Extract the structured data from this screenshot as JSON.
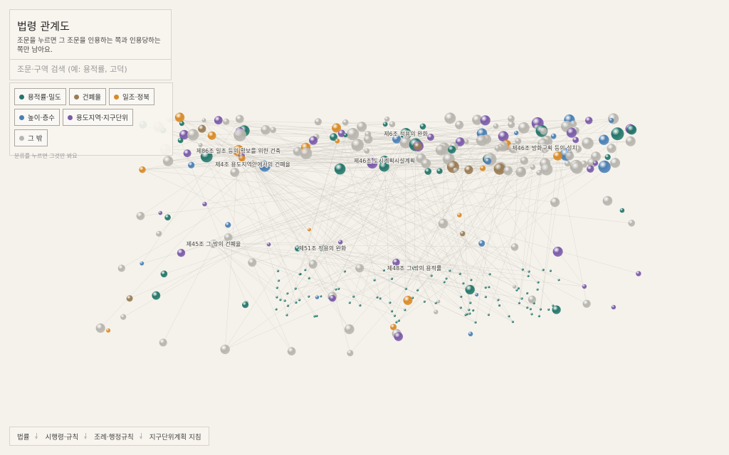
{
  "panel": {
    "title": "법령 관계도",
    "description": "조문을 누르면 그 조문을 인용하는 쪽과 인용당하는 쪽만 남아요.",
    "search_placeholder": "조문·구역 검색 (예: 용적률, 고덕)",
    "filters": [
      {
        "label": "용적률·밀도",
        "color": "#23766a"
      },
      {
        "label": "건폐율",
        "color": "#9a7c55"
      },
      {
        "label": "일조·정북",
        "color": "#d98a26"
      },
      {
        "label": "높이·층수",
        "color": "#4a7fb5"
      },
      {
        "label": "용도지역·지구단위",
        "color": "#7a5aa8"
      },
      {
        "label": "그 밖",
        "color": "#b8b5ae"
      }
    ],
    "filter_hint": "분류를 누르면 그것만 봐요"
  },
  "graph": {
    "nodes": [
      {
        "label": "제6조 적용의 완화"
      },
      {
        "label": "제86조 일조 등의 확보를 위한 건축"
      },
      {
        "label": "제46조 방화구획 등의 설치"
      },
      {
        "label": "제4조 용도지역안에서의 건폐율"
      },
      {
        "label": "제46조 도시계획시설계획"
      },
      {
        "label": "제45조 그 밖의 건폐율"
      },
      {
        "label": "제51조 적용의 완화"
      },
      {
        "label": "제48조 그 밖의 용적률"
      }
    ]
  },
  "footer": {
    "levels": [
      "법률",
      "시행령·규칙",
      "조례·행정규칙",
      "지구단위계획 지침"
    ]
  }
}
